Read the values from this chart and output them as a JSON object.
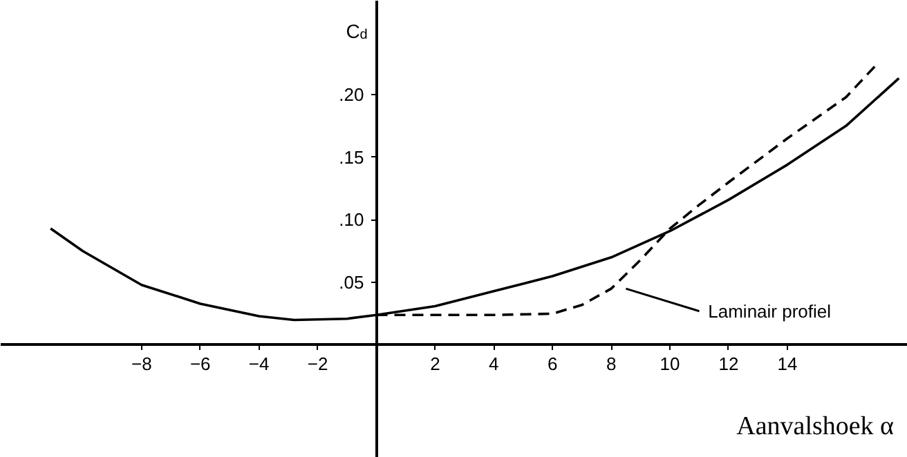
{
  "chart_data": {
    "type": "line",
    "xlabel": "Aanvalshoek α",
    "ylabel": "C$_{d}$",
    "xlim": [
      -12.8,
      18.1
    ],
    "ylim": [
      -0.09,
      0.275
    ],
    "xticks": [
      -8,
      -6,
      -4,
      -2,
      2,
      4,
      6,
      8,
      10,
      12,
      14
    ],
    "yticks": [
      {
        "value": 0.05,
        "label": ".05"
      },
      {
        "value": 0.1,
        "label": ".10"
      },
      {
        "value": 0.15,
        "label": ".15"
      },
      {
        "value": 0.2,
        "label": ".20"
      }
    ],
    "grid": false,
    "marker": "none",
    "series": [
      {
        "color": "#000000",
        "line_style": "solid",
        "x": [
          -11.1,
          -10,
          -8,
          -6,
          -4,
          -2.8,
          -1,
          0,
          2,
          4,
          6,
          8,
          10,
          12,
          14,
          16,
          17.8
        ],
        "values": [
          0.093,
          0.075,
          0.048,
          0.033,
          0.023,
          0.02,
          0.021,
          0.024,
          0.031,
          0.043,
          0.055,
          0.07,
          0.091,
          0.116,
          0.144,
          0.175,
          0.213
        ]
      },
      {
        "name": "Laminair profiel",
        "color": "#000000",
        "line_style": "dashed",
        "x": [
          0,
          2,
          4,
          6,
          7,
          8,
          9,
          10,
          11,
          12,
          14,
          16,
          17
        ],
        "values": [
          0.024,
          0.024,
          0.024,
          0.025,
          0.032,
          0.045,
          0.068,
          0.093,
          0.112,
          0.13,
          0.165,
          0.198,
          0.223
        ]
      }
    ]
  }
}
